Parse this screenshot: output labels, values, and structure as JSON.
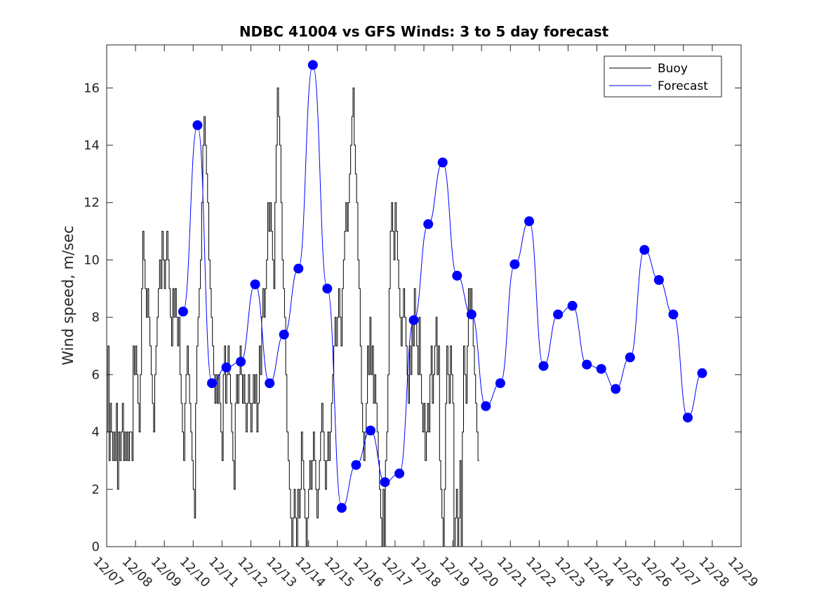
{
  "chart_data": {
    "type": "line",
    "title": "NDBC 41004 vs GFS Winds: 3 to 5 day forecast",
    "ylabel": "Wind speed, m/sec",
    "xlabel": "",
    "xlim": [
      0,
      22
    ],
    "ylim": [
      0,
      17.5
    ],
    "x_ticks": [
      0,
      1,
      2,
      3,
      4,
      5,
      6,
      7,
      8,
      9,
      10,
      11,
      12,
      13,
      14,
      15,
      16,
      17,
      18,
      19,
      20,
      21,
      22
    ],
    "x_tick_labels": [
      "12/07",
      "12/08",
      "12/09",
      "12/10",
      "12/11",
      "12/12",
      "12/13",
      "12/14",
      "12/15",
      "12/16",
      "12/17",
      "12/18",
      "12/19",
      "12/20",
      "12/21",
      "12/22",
      "12/23",
      "12/24",
      "12/25",
      "12/26",
      "12/27",
      "12/28",
      "12/29"
    ],
    "y_ticks": [
      0,
      2,
      4,
      6,
      8,
      10,
      12,
      14,
      16
    ],
    "y_tick_labels": [
      "0",
      "2",
      "4",
      "6",
      "8",
      "10",
      "12",
      "14",
      "16"
    ],
    "legend": {
      "position": "top-right",
      "entries": [
        {
          "label": "Buoy",
          "color": "#000000"
        },
        {
          "label": "Forecast",
          "color": "#0000ff"
        }
      ]
    },
    "series": [
      {
        "name": "Buoy",
        "color": "#000000",
        "x_step_days": 0.04167,
        "y": [
          4,
          7,
          3,
          5,
          4,
          3,
          4,
          3,
          5,
          2,
          4,
          3,
          4,
          5,
          3,
          4,
          3,
          4,
          3,
          4,
          4,
          3,
          7,
          6,
          7,
          6,
          5,
          4,
          6,
          9,
          11,
          10,
          9,
          8,
          9,
          8,
          7,
          6,
          5,
          4,
          6,
          7,
          8,
          9,
          10,
          9,
          11,
          10,
          9,
          10,
          11,
          10,
          9,
          8,
          7,
          9,
          8,
          9,
          8,
          7,
          8,
          6,
          5,
          4,
          3,
          5,
          6,
          7,
          6,
          5,
          4,
          3,
          2,
          1,
          5,
          7,
          8,
          9,
          10,
          12,
          14,
          15,
          14,
          13,
          12,
          10,
          9,
          8,
          7,
          6,
          5,
          6,
          5,
          6,
          5,
          4,
          3,
          6,
          7,
          5,
          6,
          7,
          6,
          5,
          4,
          3,
          2,
          5,
          6,
          5,
          6,
          7,
          6,
          5,
          6,
          5,
          4,
          5,
          6,
          5,
          4,
          5,
          6,
          5,
          6,
          4,
          5,
          7,
          6,
          8,
          9,
          8,
          9,
          10,
          12,
          11,
          12,
          11,
          10,
          9,
          12,
          14,
          16,
          15,
          14,
          12,
          10,
          9,
          8,
          6,
          4,
          3,
          2,
          1,
          0,
          1,
          2,
          1,
          0,
          2,
          1,
          2,
          4,
          3,
          2,
          1,
          0,
          1,
          2,
          3,
          2,
          3,
          4,
          3,
          2,
          1,
          2,
          3,
          4,
          5,
          4,
          3,
          2,
          3,
          4,
          3,
          4,
          5,
          6,
          7,
          8,
          7,
          8,
          9,
          8,
          7,
          9,
          10,
          11,
          12,
          11,
          12,
          13,
          14,
          15,
          16,
          14,
          13,
          12,
          10,
          9,
          7,
          5,
          4,
          3,
          4,
          5,
          7,
          6,
          8,
          6,
          7,
          5,
          6,
          5,
          4,
          3,
          2,
          1,
          0,
          2,
          0,
          3,
          4,
          6,
          9,
          11,
          12,
          11,
          10,
          12,
          11,
          10,
          9,
          8,
          7,
          8,
          9,
          8,
          7,
          6,
          5,
          7,
          6,
          8,
          7,
          9,
          8,
          7,
          6,
          8,
          6,
          5,
          4,
          5,
          3,
          4,
          5,
          4,
          6,
          7,
          5,
          6,
          7,
          8,
          6,
          7,
          3,
          2,
          1,
          0,
          2,
          5,
          7,
          6,
          5,
          7,
          6,
          5,
          0,
          1,
          2,
          0,
          1,
          3,
          0,
          4,
          7,
          6,
          5,
          7,
          9,
          8,
          9,
          8,
          7,
          6,
          5,
          4,
          3
        ],
        "x_start": 0
      },
      {
        "name": "Forecast",
        "color": "#0000ff",
        "points": [
          [
            2.65,
            8.2
          ],
          [
            3.15,
            14.7
          ],
          [
            3.65,
            5.7
          ],
          [
            4.15,
            6.25
          ],
          [
            4.65,
            6.45
          ],
          [
            5.15,
            9.15
          ],
          [
            5.65,
            5.7
          ],
          [
            6.15,
            7.4
          ],
          [
            6.65,
            9.7
          ],
          [
            7.15,
            16.8
          ],
          [
            7.65,
            9.0
          ],
          [
            8.15,
            1.35
          ],
          [
            8.65,
            2.85
          ],
          [
            9.15,
            4.05
          ],
          [
            9.65,
            2.25
          ],
          [
            10.15,
            2.55
          ],
          [
            10.65,
            7.9
          ],
          [
            11.15,
            11.25
          ],
          [
            11.65,
            13.4
          ],
          [
            12.15,
            9.45
          ],
          [
            12.65,
            8.1
          ],
          [
            13.15,
            4.9
          ],
          [
            13.65,
            5.7
          ],
          [
            14.15,
            9.85
          ],
          [
            14.65,
            11.35
          ],
          [
            15.15,
            6.3
          ],
          [
            15.65,
            8.1
          ],
          [
            16.15,
            8.4
          ],
          [
            16.65,
            6.35
          ],
          [
            17.15,
            6.2
          ],
          [
            17.65,
            5.5
          ],
          [
            18.15,
            6.6
          ],
          [
            18.65,
            10.35
          ],
          [
            19.15,
            9.3
          ],
          [
            19.65,
            8.1
          ],
          [
            20.15,
            4.5
          ],
          [
            20.65,
            6.05
          ]
        ]
      }
    ]
  }
}
